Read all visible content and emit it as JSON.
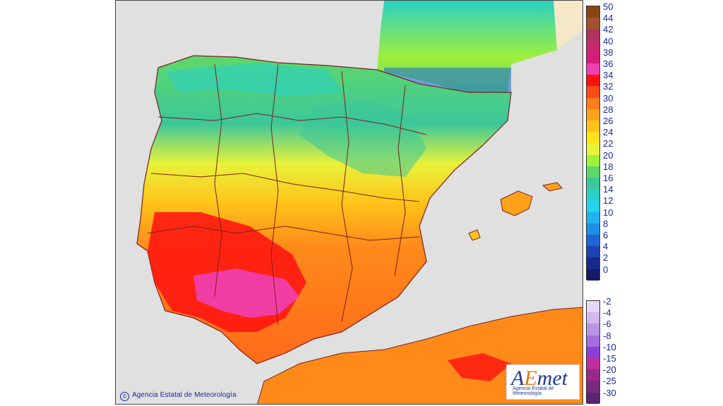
{
  "map": {
    "copyright": "Agencia Estatal de Meteorología",
    "copyright_icon": "copyright-icon",
    "logo": {
      "name": "AEmet",
      "subtitle": "Agencia Estatal de Meteorología"
    },
    "colors": {
      "sea": "#e0e0e0",
      "border": "#7a1f1f",
      "land_north": "#8fe36a",
      "land_south": "#ff8a1a"
    }
  },
  "legend": {
    "upper": [
      {
        "label": "50",
        "color": "#8b4513"
      },
      {
        "label": "44",
        "color": "#a0522d"
      },
      {
        "label": "42",
        "color": "#b03060"
      },
      {
        "label": "40",
        "color": "#c8286e"
      },
      {
        "label": "38",
        "color": "#d81b7a"
      },
      {
        "label": "36",
        "color": "#f040b4"
      },
      {
        "label": "34",
        "color": "#ff1010"
      },
      {
        "label": "32",
        "color": "#ff4a1a"
      },
      {
        "label": "30",
        "color": "#ff7f1a"
      },
      {
        "label": "28",
        "color": "#ffa21a"
      },
      {
        "label": "26",
        "color": "#ffc31a"
      },
      {
        "label": "24",
        "color": "#ffe41a"
      },
      {
        "label": "22",
        "color": "#e8f23a"
      },
      {
        "label": "20",
        "color": "#9fef3c"
      },
      {
        "label": "18",
        "color": "#5fd86a"
      },
      {
        "label": "16",
        "color": "#3cc79a"
      },
      {
        "label": "14",
        "color": "#2ad0c4"
      },
      {
        "label": "12",
        "color": "#22d4ec"
      },
      {
        "label": "10",
        "color": "#1fb3f0"
      },
      {
        "label": "8",
        "color": "#1e8ee6"
      },
      {
        "label": "6",
        "color": "#1e66d4"
      },
      {
        "label": "4",
        "color": "#1e44b4"
      },
      {
        "label": "2",
        "color": "#1a2a8c"
      },
      {
        "label": "0",
        "color": "#141a66"
      }
    ],
    "lower": [
      {
        "label": "-2",
        "color": "#e6d8f2"
      },
      {
        "label": "-4",
        "color": "#d2b8ec"
      },
      {
        "label": "-6",
        "color": "#bc94e6"
      },
      {
        "label": "-8",
        "color": "#a46ee0"
      },
      {
        "label": "-10",
        "color": "#8a3fd6"
      },
      {
        "label": "-15",
        "color": "#c02fa0"
      },
      {
        "label": "-20",
        "color": "#9a2a8a"
      },
      {
        "label": "-25",
        "color": "#7a2a80"
      },
      {
        "label": "-30",
        "color": "#5a2470"
      }
    ]
  }
}
